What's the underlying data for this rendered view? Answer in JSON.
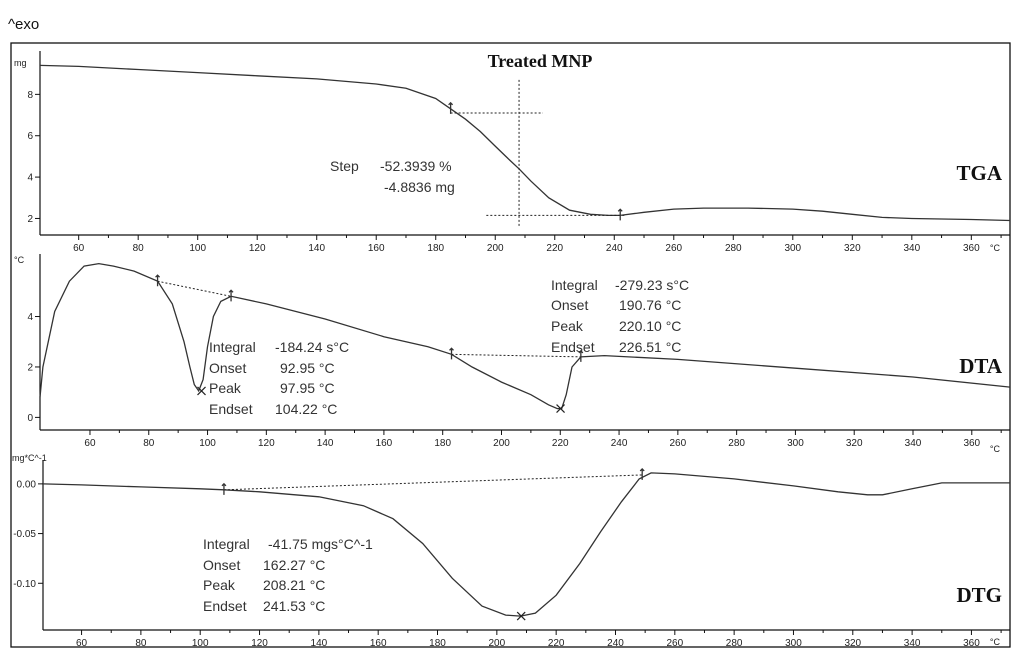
{
  "figure": {
    "exo_label": "^exo",
    "title": "Treated MNP"
  },
  "chart_data": [
    {
      "type": "line",
      "panel_label": "TGA",
      "ylabel": "mg",
      "x_unit": "°C",
      "xlim": [
        47,
        373
      ],
      "ylim": [
        1.2,
        10
      ],
      "x_ticks": [
        60,
        80,
        100,
        120,
        140,
        160,
        180,
        200,
        220,
        240,
        260,
        280,
        300,
        320,
        340,
        360
      ],
      "y_ticks": [
        2,
        4,
        6,
        8
      ],
      "series": [
        {
          "x": [
            47,
            60,
            80,
            100,
            120,
            140,
            160,
            170,
            180,
            185,
            190,
            195,
            200,
            205,
            208,
            212,
            218,
            225,
            232,
            238,
            242,
            250,
            260,
            270,
            285,
            300,
            310,
            320,
            330,
            340,
            360,
            373
          ],
          "y": [
            9.4,
            9.35,
            9.2,
            9.05,
            8.9,
            8.75,
            8.5,
            8.3,
            7.8,
            7.3,
            6.8,
            6.2,
            5.5,
            4.8,
            4.4,
            3.8,
            3.0,
            2.4,
            2.2,
            2.15,
            2.15,
            2.3,
            2.45,
            2.5,
            2.5,
            2.45,
            2.35,
            2.2,
            2.05,
            2.0,
            1.95,
            1.9
          ]
        }
      ],
      "annotations": {
        "step_label": "Step",
        "step_percent": "-52.3939 %",
        "step_mg": "-4.8836 mg"
      }
    },
    {
      "type": "line",
      "panel_label": "DTA",
      "ylabel": "°C",
      "x_unit": "°C",
      "xlim": [
        43,
        373
      ],
      "ylim": [
        -0.5,
        6.4
      ],
      "x_ticks": [
        60,
        80,
        100,
        120,
        140,
        160,
        180,
        200,
        220,
        240,
        260,
        280,
        300,
        320,
        340,
        360
      ],
      "y_ticks": [
        0,
        2,
        4
      ],
      "series": [
        {
          "x": [
            43,
            44,
            48,
            53,
            58,
            63,
            68,
            75,
            83,
            88,
            92,
            94,
            95.5,
            97,
            98.5,
            100,
            102,
            104.5,
            108,
            120,
            140,
            160,
            175,
            183,
            190,
            200,
            210,
            216,
            219,
            220.5,
            222,
            224,
            227,
            235,
            260,
            300,
            340,
            373
          ],
          "y": [
            0.8,
            2.0,
            4.2,
            5.4,
            6.0,
            6.1,
            6.0,
            5.8,
            5.4,
            4.5,
            3.0,
            2.0,
            1.3,
            1.05,
            1.5,
            2.8,
            4.0,
            4.6,
            4.8,
            4.5,
            3.9,
            3.2,
            2.8,
            2.5,
            2.0,
            1.4,
            0.9,
            0.5,
            0.35,
            0.35,
            0.9,
            2.0,
            2.4,
            2.45,
            2.3,
            1.95,
            1.6,
            1.2
          ]
        }
      ],
      "annotations": [
        {
          "integral_label": "Integral",
          "integral_value": "-184.24 s°C",
          "onset_label": "Onset",
          "onset_value": "92.95 °C",
          "peak_label": "Peak",
          "peak_value": "97.95 °C",
          "endset_label": "Endset",
          "endset_value": "104.22 °C"
        },
        {
          "integral_label": "Integral",
          "integral_value": "-279.23 s°C",
          "onset_label": "Onset",
          "onset_value": "190.76 °C",
          "peak_label": "Peak",
          "peak_value": "220.10 °C",
          "endset_label": "Endset",
          "endset_value": "226.51 °C"
        }
      ]
    },
    {
      "type": "line",
      "panel_label": "DTG",
      "ylabel": "mg*C^-1",
      "x_unit": "°C",
      "xlim": [
        47,
        373
      ],
      "ylim": [
        -0.147,
        0.022
      ],
      "x_ticks": [
        60,
        80,
        100,
        120,
        140,
        160,
        180,
        200,
        220,
        240,
        260,
        280,
        300,
        320,
        340,
        360
      ],
      "y_ticks": [
        "0.00",
        "-0.05",
        "-0.10"
      ],
      "series": [
        {
          "x": [
            47,
            60,
            80,
            100,
            108,
            120,
            140,
            155,
            165,
            175,
            185,
            195,
            203,
            208,
            213,
            220,
            228,
            235,
            242,
            248,
            252,
            260,
            280,
            300,
            315,
            325,
            330,
            340,
            350,
            373
          ],
          "y": [
            0.0,
            -0.001,
            -0.003,
            -0.005,
            -0.006,
            -0.008,
            -0.013,
            -0.022,
            -0.035,
            -0.06,
            -0.095,
            -0.123,
            -0.132,
            -0.133,
            -0.13,
            -0.112,
            -0.08,
            -0.048,
            -0.018,
            0.005,
            0.011,
            0.01,
            0.005,
            -0.002,
            -0.008,
            -0.011,
            -0.011,
            -0.005,
            0.001,
            0.001
          ]
        }
      ],
      "annotations": {
        "integral_label": "Integral",
        "integral_value": "-41.75 mgs°C^-1",
        "onset_label": "Onset",
        "onset_value": "162.27 °C",
        "peak_label": "Peak",
        "peak_value": "208.21 °C",
        "endset_label": "Endset",
        "endset_value": "241.53 °C"
      }
    }
  ]
}
